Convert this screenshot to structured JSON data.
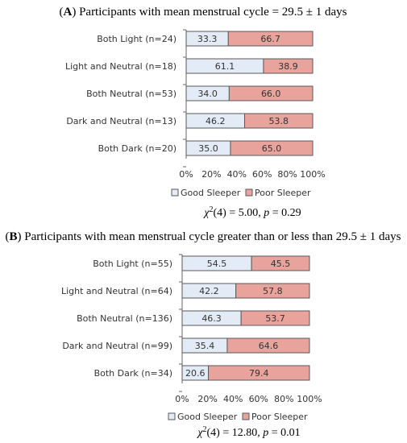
{
  "colors": {
    "good": "#e3ebf6",
    "poor": "#e8a39c",
    "bar_stroke": "#5a5a5a",
    "axis": "#666666"
  },
  "chart_data": [
    {
      "type": "bar",
      "orientation": "horizontal",
      "stacked": "percent",
      "panel_letter": "A",
      "title": "Participants with mean menstrual cycle = 29.5 ± 1 days",
      "categories": [
        "Both Light (n=24)",
        "Light and Neutral (n=18)",
        "Both Neutral (n=53)",
        "Dark and Neutral (n=13)",
        "Both Dark (n=20)"
      ],
      "series": [
        {
          "name": "Good Sleeper",
          "values": [
            33.3,
            61.1,
            34.0,
            46.2,
            35.0
          ]
        },
        {
          "name": "Poor Sleeper",
          "values": [
            66.7,
            38.9,
            66.0,
            53.8,
            65.0
          ]
        }
      ],
      "value_labels": {
        "Good Sleeper": [
          "33.3",
          "61.1",
          "34.0",
          "46.2",
          "35.0"
        ],
        "Poor Sleeper": [
          "66.7",
          "38.9",
          "66.0",
          "53.8",
          "65.0"
        ]
      },
      "ticks": [
        "0%",
        "20%",
        "40%",
        "60%",
        "80%",
        "100%"
      ],
      "xlim": [
        0,
        100
      ],
      "legend_position": "bottom",
      "stat": {
        "prefix": "χ",
        "sup": "2",
        "text": "(4) = 5.00, ",
        "p": "p",
        "p_value": " = 0.29"
      }
    },
    {
      "type": "bar",
      "orientation": "horizontal",
      "stacked": "percent",
      "panel_letter": "B",
      "title": "Participants with mean menstrual cycle greater than or less than 29.5 ± 1 days",
      "categories": [
        "Both Light (n=55)",
        "Light and Neutral (n=64)",
        "Both Neutral (n=136)",
        "Dark and Neutral (n=99)",
        "Both Dark (n=34)"
      ],
      "series": [
        {
          "name": "Good Sleeper",
          "values": [
            54.5,
            42.2,
            46.3,
            35.4,
            20.6
          ]
        },
        {
          "name": "Poor Sleeper",
          "values": [
            45.5,
            57.8,
            53.7,
            64.6,
            79.4
          ]
        }
      ],
      "value_labels": {
        "Good Sleeper": [
          "54.5",
          "42.2",
          "46.3",
          "35.4",
          "20.6"
        ],
        "Poor Sleeper": [
          "45.5",
          "57.8",
          "53.7",
          "64.6",
          "79.4"
        ]
      },
      "ticks": [
        "0%",
        "20%",
        "40%",
        "60%",
        "80%",
        "100%"
      ],
      "xlim": [
        0,
        100
      ],
      "legend_position": "bottom",
      "stat": {
        "prefix": "χ",
        "sup": "2",
        "text": "(4) = 12.80, ",
        "p": "p",
        "p_value": " = 0.01"
      }
    }
  ]
}
